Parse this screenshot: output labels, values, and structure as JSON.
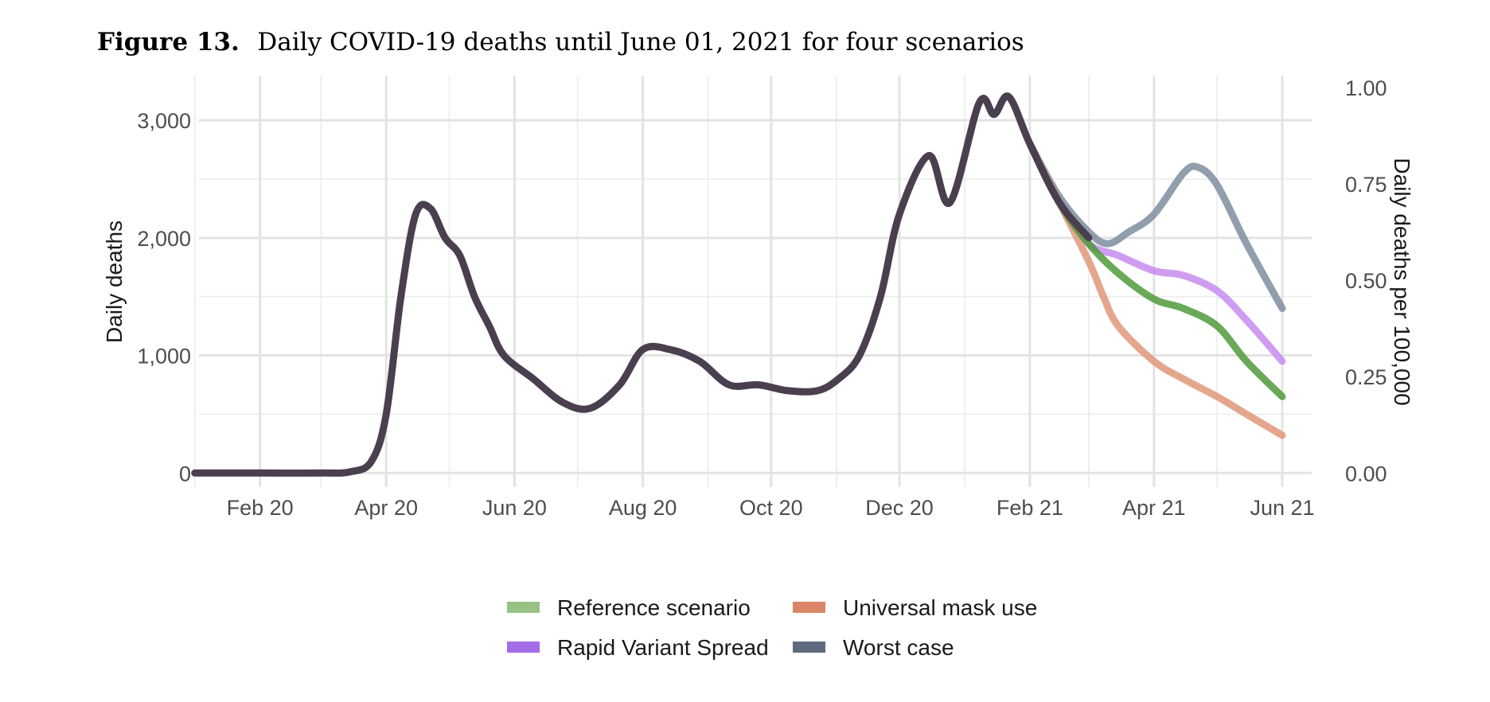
{
  "figure": {
    "label": "Figure 13.",
    "caption": "Daily COVID-19 deaths until June 01, 2021 for four scenarios"
  },
  "chart_data": {
    "type": "line",
    "title": "",
    "xlabel": "",
    "ylabel": "Daily deaths",
    "ylabel_right": "Daily deaths per 100,000",
    "ylim": [
      -120,
      3380
    ],
    "yticks": [
      0,
      1000,
      2000,
      3000
    ],
    "ytick_labels": [
      "0",
      "1,000",
      "2,000",
      "3,000"
    ],
    "yticks_right": [
      0.0,
      0.25,
      0.5,
      0.75,
      1.0
    ],
    "ytick_labels_right": [
      "0.00",
      "0.25",
      "0.50",
      "0.75",
      "1.00"
    ],
    "xlim": [
      "2020-01-03",
      "2021-06-15"
    ],
    "xticks": [
      "2020-02-01",
      "2020-04-01",
      "2020-06-01",
      "2020-08-01",
      "2020-10-01",
      "2020-12-01",
      "2021-02-01",
      "2021-04-01",
      "2021-06-01"
    ],
    "xtick_labels": [
      "Feb 20",
      "Apr 20",
      "Jun 20",
      "Aug 20",
      "Oct 20",
      "Dec 20",
      "Feb 21",
      "Apr 21",
      "Jun 21"
    ],
    "grid": true,
    "legend_position": "bottom",
    "observed": {
      "color": "#4a3f4f",
      "points": [
        [
          "2020-01-01",
          0
        ],
        [
          "2020-02-01",
          0
        ],
        [
          "2020-03-01",
          0
        ],
        [
          "2020-03-15",
          10
        ],
        [
          "2020-03-25",
          100
        ],
        [
          "2020-04-01",
          500
        ],
        [
          "2020-04-08",
          1500
        ],
        [
          "2020-04-15",
          2200
        ],
        [
          "2020-04-22",
          2250
        ],
        [
          "2020-04-29",
          2000
        ],
        [
          "2020-05-06",
          1850
        ],
        [
          "2020-05-13",
          1500
        ],
        [
          "2020-05-20",
          1250
        ],
        [
          "2020-05-27",
          1000
        ],
        [
          "2020-06-10",
          800
        ],
        [
          "2020-06-24",
          600
        ],
        [
          "2020-07-07",
          550
        ],
        [
          "2020-07-21",
          750
        ],
        [
          "2020-08-01",
          1050
        ],
        [
          "2020-08-14",
          1050
        ],
        [
          "2020-08-28",
          950
        ],
        [
          "2020-09-11",
          750
        ],
        [
          "2020-09-25",
          750
        ],
        [
          "2020-10-09",
          700
        ],
        [
          "2020-10-23",
          700
        ],
        [
          "2020-11-02",
          800
        ],
        [
          "2020-11-12",
          1000
        ],
        [
          "2020-11-22",
          1500
        ],
        [
          "2020-12-01",
          2200
        ],
        [
          "2020-12-15",
          2700
        ],
        [
          "2020-12-25",
          2300
        ],
        [
          "2021-01-08",
          3150
        ],
        [
          "2021-01-15",
          3050
        ],
        [
          "2021-01-22",
          3200
        ],
        [
          "2021-02-01",
          2800
        ],
        [
          "2021-02-15",
          2300
        ],
        [
          "2021-03-01",
          2000
        ]
      ]
    },
    "series": [
      {
        "name": "Reference scenario",
        "color": "#4f9a3a",
        "legend_color": "#96c285",
        "points": [
          [
            "2021-02-01",
            2800
          ],
          [
            "2021-02-15",
            2300
          ],
          [
            "2021-03-01",
            1950
          ],
          [
            "2021-03-15",
            1700
          ],
          [
            "2021-04-01",
            1480
          ],
          [
            "2021-04-15",
            1400
          ],
          [
            "2021-05-01",
            1250
          ],
          [
            "2021-05-15",
            950
          ],
          [
            "2021-06-01",
            650
          ]
        ]
      },
      {
        "name": "Universal mask use",
        "color": "#e0967a",
        "legend_color": "#da8666",
        "points": [
          [
            "2021-02-01",
            2800
          ],
          [
            "2021-02-15",
            2300
          ],
          [
            "2021-03-01",
            1800
          ],
          [
            "2021-03-08",
            1500
          ],
          [
            "2021-03-15",
            1250
          ],
          [
            "2021-04-01",
            950
          ],
          [
            "2021-04-15",
            800
          ],
          [
            "2021-05-01",
            650
          ],
          [
            "2021-05-15",
            500
          ],
          [
            "2021-06-01",
            320
          ]
        ]
      },
      {
        "name": "Rapid Variant Spread",
        "color": "#c58cf0",
        "legend_color": "#a46de8",
        "points": [
          [
            "2021-02-01",
            2800
          ],
          [
            "2021-02-15",
            2300
          ],
          [
            "2021-03-01",
            1950
          ],
          [
            "2021-03-15",
            1850
          ],
          [
            "2021-04-01",
            1720
          ],
          [
            "2021-04-15",
            1680
          ],
          [
            "2021-05-01",
            1550
          ],
          [
            "2021-05-15",
            1300
          ],
          [
            "2021-06-01",
            950
          ]
        ]
      },
      {
        "name": "Worst case",
        "color": "#7d8da0",
        "legend_color": "#5e6b7e",
        "points": [
          [
            "2021-02-01",
            2800
          ],
          [
            "2021-02-15",
            2350
          ],
          [
            "2021-03-01",
            2050
          ],
          [
            "2021-03-10",
            1950
          ],
          [
            "2021-03-20",
            2050
          ],
          [
            "2021-04-01",
            2200
          ],
          [
            "2021-04-15",
            2550
          ],
          [
            "2021-04-22",
            2600
          ],
          [
            "2021-05-01",
            2450
          ],
          [
            "2021-05-15",
            1950
          ],
          [
            "2021-06-01",
            1400
          ]
        ]
      }
    ]
  }
}
